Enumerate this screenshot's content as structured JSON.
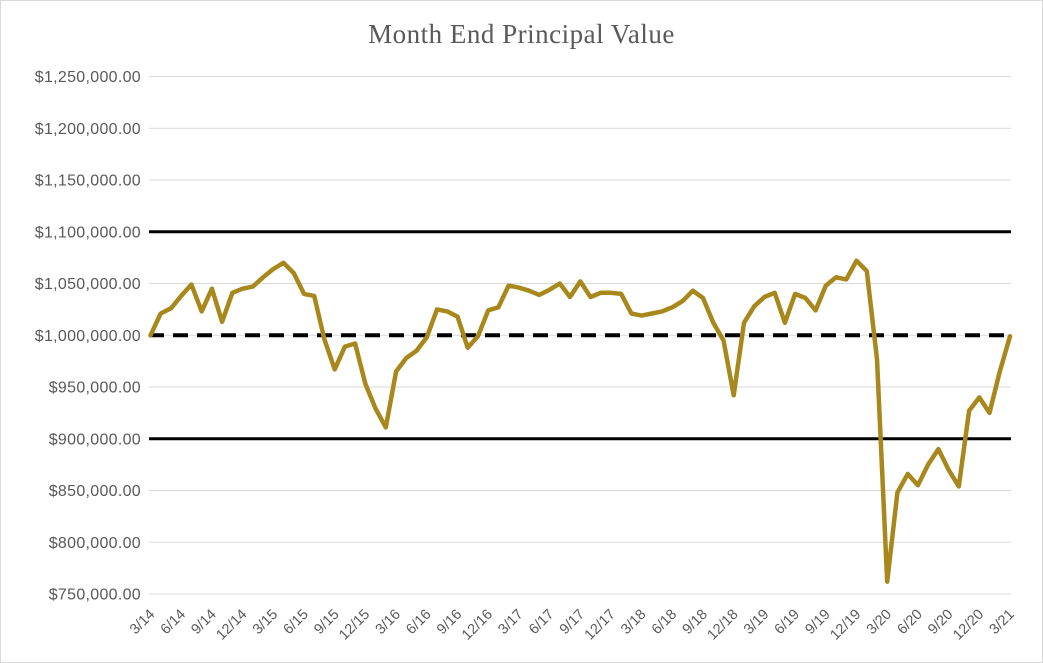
{
  "window": {
    "background_color": "#FFFFFF",
    "border_color": "#D9D9D9"
  },
  "chart_data": {
    "type": "line",
    "title": "Month End Principal Value",
    "title_color": "#595959",
    "axis_label_color": "#595959",
    "gridline_color": "#D9D9D9",
    "grid": "horizontal",
    "legend": "none",
    "x_frequency": "monthly data points, axis tick labels every 3 months",
    "x_tick_labels": [
      "3/14",
      "6/14",
      "9/14",
      "12/14",
      "3/15",
      "6/15",
      "9/15",
      "12/15",
      "3/16",
      "6/16",
      "9/16",
      "12/16",
      "3/17",
      "6/17",
      "9/17",
      "12/17",
      "3/18",
      "6/18",
      "9/18",
      "12/18",
      "3/19",
      "6/19",
      "9/19",
      "12/19",
      "3/20",
      "6/20",
      "9/20",
      "12/20",
      "3/21"
    ],
    "ylim": [
      750000,
      1250000
    ],
    "y_ticks": [
      {
        "value": 750000,
        "label": "$750,000.00"
      },
      {
        "value": 800000,
        "label": "$800,000.00"
      },
      {
        "value": 850000,
        "label": "$850,000.00"
      },
      {
        "value": 900000,
        "label": "$900,000.00"
      },
      {
        "value": 950000,
        "label": "$950,000.00"
      },
      {
        "value": 1000000,
        "label": "$1,000,000.00"
      },
      {
        "value": 1050000,
        "label": "$1,050,000.00"
      },
      {
        "value": 1100000,
        "label": "$1,100,000.00"
      },
      {
        "value": 1150000,
        "label": "$1,150,000.00"
      },
      {
        "value": 1200000,
        "label": "$1,200,000.00"
      },
      {
        "value": 1250000,
        "label": "$1,250,000.00"
      }
    ],
    "reference_lines": [
      {
        "value": 1100000,
        "style": "solid",
        "color": "#000000",
        "name": "upper-band"
      },
      {
        "value": 1000000,
        "style": "dashed",
        "color": "#000000",
        "name": "initial-principal"
      },
      {
        "value": 900000,
        "style": "solid",
        "color": "#000000",
        "name": "lower-band"
      }
    ],
    "series": [
      {
        "name": "Month End Principal Value",
        "color": "#A8881C",
        "values": [
          1000000,
          1021000,
          1026000,
          1038000,
          1049000,
          1023000,
          1045000,
          1013000,
          1041000,
          1045000,
          1047000,
          1056000,
          1064000,
          1070000,
          1060000,
          1040000,
          1038000,
          996000,
          967000,
          989000,
          992000,
          953000,
          929000,
          911000,
          965000,
          978000,
          985000,
          998000,
          1025000,
          1023000,
          1018000,
          988000,
          999000,
          1024000,
          1027000,
          1048000,
          1046000,
          1043000,
          1039000,
          1044000,
          1050000,
          1037000,
          1052000,
          1037000,
          1041000,
          1041000,
          1040000,
          1021000,
          1019000,
          1021000,
          1023000,
          1027000,
          1033000,
          1043000,
          1036000,
          1012000,
          995000,
          942000,
          1012000,
          1028000,
          1037000,
          1041000,
          1012000,
          1040000,
          1036000,
          1024000,
          1048000,
          1056000,
          1054000,
          1072000,
          1062000,
          977000,
          762000,
          848000,
          866000,
          855000,
          875000,
          890000,
          870000,
          854000,
          927000,
          940000,
          925000,
          965000,
          999000
        ]
      }
    ]
  }
}
